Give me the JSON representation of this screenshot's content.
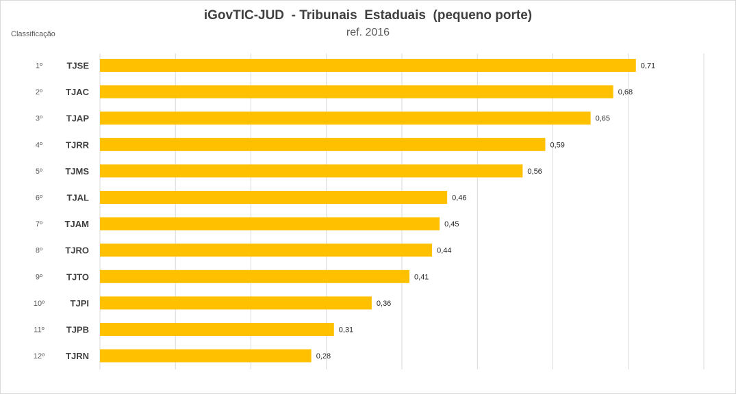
{
  "chart_data": {
    "type": "bar",
    "orientation": "horizontal",
    "title": "iGovTIC-JUD  - Tribunais  Estaduais  (pequeno porte)",
    "subtitle": "ref. 2016",
    "rank_header": "Classificação",
    "ranks": [
      "1º",
      "2º",
      "3º",
      "4º",
      "5º",
      "6º",
      "7º",
      "8º",
      "9º",
      "10º",
      "11º",
      "12º"
    ],
    "categories": [
      "TJSE",
      "TJAC",
      "TJAP",
      "TJRR",
      "TJMS",
      "TJAL",
      "TJAM",
      "TJRO",
      "TJTO",
      "TJPI",
      "TJPB",
      "TJRN"
    ],
    "values": [
      0.71,
      0.68,
      0.65,
      0.59,
      0.56,
      0.46,
      0.45,
      0.44,
      0.41,
      0.36,
      0.31,
      0.28
    ],
    "value_labels": [
      "0,71",
      "0,68",
      "0,65",
      "0,59",
      "0,56",
      "0,46",
      "0,45",
      "0,44",
      "0,41",
      "0,36",
      "0,31",
      "0,28"
    ],
    "xlim": [
      0,
      0.8
    ],
    "grid": true,
    "legend": "none",
    "bar_color": "#ffc000"
  }
}
